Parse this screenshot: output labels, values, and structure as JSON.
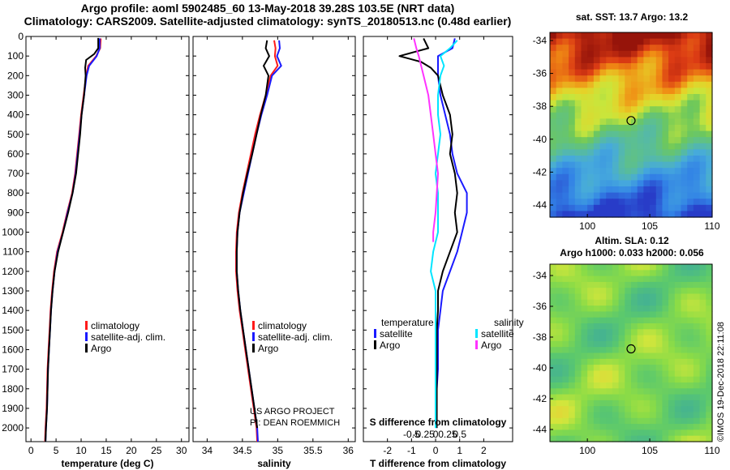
{
  "header": {
    "line1": "Argo profile: aoml 5902485_60 13-May-2018 39.28S 103.5E (NRT data)",
    "line2": "Climatology: CARS2009. Satellite-adjusted climatology: synTS_20180513.nc (0.48d earlier)"
  },
  "colors": {
    "climatology": "#ff1a1a",
    "satellite": "#1a1aff",
    "argo": "#000000",
    "cyan": "#00e5ff",
    "magenta": "#ff33ff"
  },
  "depth_axis": {
    "ylim": [
      2070,
      0
    ],
    "ticks": [
      0,
      100,
      200,
      300,
      400,
      500,
      600,
      700,
      800,
      900,
      1000,
      1100,
      1200,
      1300,
      1400,
      1500,
      1600,
      1700,
      1800,
      1900,
      2000
    ]
  },
  "chart_data": [
    {
      "type": "line",
      "id": "temperature",
      "xlabel": "temperature (deg C)",
      "xlim": [
        -1,
        31.5
      ],
      "xticks": [
        0,
        5,
        10,
        15,
        20,
        25,
        30
      ],
      "xtick_labels": [
        "0",
        "5",
        "10",
        "15",
        "20",
        "25",
        "30"
      ],
      "legend": [
        "climatology",
        "satellite-adj. clim.",
        "Argo"
      ],
      "series": [
        {
          "name": "climatology",
          "color": "#ff1a1a",
          "points": [
            [
              13.9,
              10
            ],
            [
              13.8,
              60
            ],
            [
              13.0,
              100
            ],
            [
              11.4,
              150
            ],
            [
              11.0,
              200
            ],
            [
              10.5,
              300
            ],
            [
              10.0,
              400
            ],
            [
              9.6,
              500
            ],
            [
              9.2,
              600
            ],
            [
              8.8,
              700
            ],
            [
              8.2,
              800
            ],
            [
              7.2,
              900
            ],
            [
              6.3,
              1000
            ],
            [
              5.2,
              1100
            ],
            [
              4.6,
              1200
            ],
            [
              4.2,
              1300
            ],
            [
              3.9,
              1400
            ],
            [
              3.7,
              1500
            ],
            [
              3.5,
              1600
            ],
            [
              3.3,
              1700
            ],
            [
              3.2,
              1800
            ],
            [
              3.1,
              1900
            ],
            [
              2.9,
              2000
            ],
            [
              2.8,
              2070
            ]
          ]
        },
        {
          "name": "satellite-adj. clim.",
          "color": "#1a1aff",
          "points": [
            [
              13.7,
              10
            ],
            [
              13.7,
              60
            ],
            [
              13.1,
              100
            ],
            [
              11.6,
              150
            ],
            [
              11.1,
              200
            ],
            [
              10.6,
              300
            ],
            [
              10.1,
              400
            ],
            [
              9.7,
              500
            ],
            [
              9.3,
              600
            ],
            [
              8.9,
              700
            ],
            [
              8.3,
              800
            ],
            [
              7.3,
              900
            ],
            [
              6.4,
              1000
            ],
            [
              5.3,
              1100
            ],
            [
              4.7,
              1200
            ],
            [
              4.3,
              1300
            ],
            [
              4.0,
              1400
            ],
            [
              3.8,
              1500
            ],
            [
              3.6,
              1600
            ],
            [
              3.4,
              1700
            ],
            [
              3.3,
              1800
            ],
            [
              3.2,
              1900
            ],
            [
              3.0,
              2000
            ],
            [
              2.9,
              2070
            ]
          ]
        },
        {
          "name": "Argo",
          "color": "#000000",
          "points": [
            [
              13.4,
              8
            ],
            [
              13.4,
              60
            ],
            [
              12.6,
              90
            ],
            [
              11.0,
              120
            ],
            [
              10.8,
              160
            ],
            [
              10.9,
              200
            ],
            [
              10.6,
              300
            ],
            [
              10.1,
              400
            ],
            [
              9.8,
              500
            ],
            [
              9.4,
              600
            ],
            [
              9.0,
              700
            ],
            [
              8.3,
              800
            ],
            [
              7.4,
              900
            ],
            [
              6.4,
              1000
            ],
            [
              5.4,
              1100
            ],
            [
              4.7,
              1200
            ],
            [
              4.3,
              1300
            ],
            [
              4.0,
              1400
            ],
            [
              3.8,
              1500
            ],
            [
              3.6,
              1600
            ],
            [
              3.4,
              1700
            ],
            [
              3.3,
              1800
            ],
            [
              3.2,
              1900
            ],
            [
              3.0,
              2000
            ],
            [
              2.9,
              2070
            ]
          ]
        }
      ]
    },
    {
      "type": "line",
      "id": "salinity",
      "xlabel": "salinity",
      "xlim": [
        33.8,
        36.1
      ],
      "xticks": [
        34,
        34.5,
        35,
        35.5,
        36
      ],
      "xtick_labels": [
        "34",
        "34.5",
        "35",
        "35.5",
        "36"
      ],
      "legend": [
        "climatology",
        "satellite-adj. clim.",
        "Argo"
      ],
      "annotation": [
        "US ARGO PROJECT",
        "PI: DEAN ROEMMICH"
      ],
      "series": [
        {
          "name": "climatology",
          "color": "#ff1a1a",
          "points": [
            [
              34.95,
              20
            ],
            [
              34.97,
              60
            ],
            [
              34.96,
              100
            ],
            [
              35.0,
              150
            ],
            [
              34.9,
              200
            ],
            [
              34.83,
              300
            ],
            [
              34.75,
              400
            ],
            [
              34.68,
              500
            ],
            [
              34.62,
              600
            ],
            [
              34.56,
              700
            ],
            [
              34.5,
              800
            ],
            [
              34.45,
              900
            ],
            [
              34.42,
              1000
            ],
            [
              34.41,
              1100
            ],
            [
              34.41,
              1200
            ],
            [
              34.43,
              1300
            ],
            [
              34.46,
              1400
            ],
            [
              34.5,
              1500
            ],
            [
              34.54,
              1600
            ],
            [
              34.58,
              1700
            ],
            [
              34.62,
              1800
            ],
            [
              34.66,
              1900
            ],
            [
              34.7,
              2000
            ],
            [
              34.71,
              2070
            ]
          ]
        },
        {
          "name": "satellite-adj. clim.",
          "color": "#1a1aff",
          "points": [
            [
              35.02,
              20
            ],
            [
              35.03,
              60
            ],
            [
              34.99,
              100
            ],
            [
              35.05,
              150
            ],
            [
              34.92,
              200
            ],
            [
              34.85,
              300
            ],
            [
              34.77,
              400
            ],
            [
              34.7,
              500
            ],
            [
              34.64,
              600
            ],
            [
              34.58,
              700
            ],
            [
              34.52,
              800
            ],
            [
              34.46,
              900
            ],
            [
              34.43,
              1000
            ],
            [
              34.42,
              1100
            ],
            [
              34.42,
              1200
            ],
            [
              34.44,
              1300
            ],
            [
              34.47,
              1400
            ],
            [
              34.51,
              1500
            ],
            [
              34.55,
              1600
            ],
            [
              34.59,
              1700
            ],
            [
              34.63,
              1800
            ],
            [
              34.67,
              1900
            ],
            [
              34.71,
              2000
            ],
            [
              34.72,
              2070
            ]
          ]
        },
        {
          "name": "Argo",
          "color": "#000000",
          "points": [
            [
              34.85,
              20
            ],
            [
              34.83,
              60
            ],
            [
              34.88,
              100
            ],
            [
              34.8,
              150
            ],
            [
              34.87,
              200
            ],
            [
              34.83,
              300
            ],
            [
              34.76,
              400
            ],
            [
              34.7,
              500
            ],
            [
              34.64,
              600
            ],
            [
              34.57,
              700
            ],
            [
              34.51,
              800
            ],
            [
              34.46,
              900
            ],
            [
              34.43,
              1000
            ],
            [
              34.42,
              1100
            ],
            [
              34.42,
              1200
            ],
            [
              34.44,
              1300
            ],
            [
              34.47,
              1400
            ],
            [
              34.51,
              1500
            ],
            [
              34.55,
              1600
            ],
            [
              34.59,
              1700
            ],
            [
              34.63,
              1800
            ],
            [
              34.67,
              1900
            ],
            [
              34.71,
              2000
            ]
          ]
        }
      ]
    },
    {
      "type": "line",
      "id": "differences",
      "xlabel": "T difference from climatology",
      "xlabel2": "S difference from climatology",
      "xlim": [
        -3,
        3.2
      ],
      "xticks": [
        -2,
        -1,
        0,
        1,
        2
      ],
      "xtick_labels": [
        "-2",
        "-1",
        "0",
        "1",
        "2"
      ],
      "s_ticks": [
        -0.5,
        -0.25,
        0,
        0.25,
        0.5
      ],
      "s_tick_labels": [
        "-0.5",
        "-0.25",
        "0",
        "0.25",
        "0.5"
      ],
      "legend_temperature": {
        "title": "temperature",
        "items": [
          "satellite",
          "Argo"
        ]
      },
      "legend_salinity": {
        "title": "salinity",
        "items": [
          "satellite",
          "Argo"
        ]
      },
      "series": [
        {
          "name": "T satellite",
          "color": "#1a1aff",
          "points": [
            [
              0.8,
              10
            ],
            [
              0.7,
              60
            ],
            [
              0.1,
              100
            ],
            [
              0.1,
              150
            ],
            [
              0.1,
              200
            ],
            [
              0.2,
              300
            ],
            [
              0.4,
              400
            ],
            [
              0.6,
              500
            ],
            [
              0.7,
              600
            ],
            [
              0.9,
              700
            ],
            [
              1.3,
              800
            ],
            [
              1.3,
              900
            ],
            [
              1.1,
              1000
            ],
            [
              0.9,
              1100
            ],
            [
              0.6,
              1200
            ],
            [
              0.3,
              1300
            ],
            [
              0.2,
              1400
            ],
            [
              0.1,
              1500
            ],
            [
              0.1,
              1600
            ],
            [
              0.1,
              1700
            ],
            [
              0.05,
              1800
            ],
            [
              0.05,
              1900
            ],
            [
              0.05,
              2000
            ]
          ]
        },
        {
          "name": "T Argo",
          "color": "#000000",
          "points": [
            [
              -0.5,
              10
            ],
            [
              -0.3,
              60
            ],
            [
              -0.9,
              80
            ],
            [
              -1.5,
              100
            ],
            [
              -0.6,
              130
            ],
            [
              -0.2,
              160
            ],
            [
              0.1,
              200
            ],
            [
              0.3,
              300
            ],
            [
              0.6,
              400
            ],
            [
              0.7,
              500
            ],
            [
              0.6,
              600
            ],
            [
              0.8,
              700
            ],
            [
              0.9,
              800
            ],
            [
              0.8,
              900
            ],
            [
              0.9,
              1000
            ],
            [
              0.6,
              1100
            ],
            [
              0.3,
              1200
            ],
            [
              0.1,
              1300
            ],
            [
              0.1,
              1400
            ],
            [
              0.05,
              1500
            ],
            [
              0.05,
              1600
            ],
            [
              0.05,
              1700
            ],
            [
              0.05,
              1800
            ],
            [
              0.05,
              1900
            ],
            [
              0.05,
              2000
            ]
          ]
        },
        {
          "name": "S satellite",
          "color": "#00e5ff",
          "points": [
            [
              0.9,
              20
            ],
            [
              0.6,
              60
            ],
            [
              0.2,
              100
            ],
            [
              0.35,
              150
            ],
            [
              0.2,
              200
            ],
            [
              0.1,
              300
            ],
            [
              0.1,
              400
            ],
            [
              0.2,
              500
            ],
            [
              0.1,
              600
            ],
            [
              0.0,
              700
            ],
            [
              0.1,
              800
            ],
            [
              0.1,
              900
            ],
            [
              0.1,
              1000
            ],
            [
              -0.1,
              1100
            ],
            [
              -0.2,
              1200
            ],
            [
              0.0,
              1300
            ],
            [
              0.0,
              1400
            ],
            [
              0.0,
              1500
            ],
            [
              0.0,
              1600
            ],
            [
              0.0,
              1700
            ],
            [
              0.0,
              1800
            ],
            [
              0.0,
              1900
            ],
            [
              0.0,
              2000
            ]
          ]
        },
        {
          "name": "S Argo",
          "color": "#ff33ff",
          "points": [
            [
              -0.9,
              10
            ],
            [
              -0.8,
              60
            ],
            [
              -0.7,
              100
            ],
            [
              -0.6,
              150
            ],
            [
              -0.5,
              200
            ],
            [
              -0.3,
              300
            ],
            [
              -0.2,
              400
            ],
            [
              -0.1,
              500
            ],
            [
              0.0,
              600
            ],
            [
              0.1,
              700
            ],
            [
              0.05,
              800
            ],
            [
              0.0,
              900
            ],
            [
              -0.1,
              1000
            ],
            [
              -0.1,
              1050
            ]
          ]
        }
      ]
    }
  ],
  "maps": [
    {
      "id": "sst",
      "title": "sat. SST: 13.7 Argo: 13.2",
      "yticks": [
        "-34",
        "-36",
        "-38",
        "-40",
        "-42",
        "-44"
      ],
      "xticks": [
        "100",
        "105",
        "110"
      ]
    },
    {
      "id": "sla",
      "title1": "Altim. SLA: 0.12",
      "title2": "Argo h1000: 0.033 h2000: 0.056",
      "yticks": [
        "-34",
        "-36",
        "-38",
        "-40",
        "-42",
        "-44"
      ],
      "xticks": [
        "100",
        "105",
        "110"
      ]
    }
  ],
  "credit": "©IMOS 19-Dec-2018 22:11:08"
}
